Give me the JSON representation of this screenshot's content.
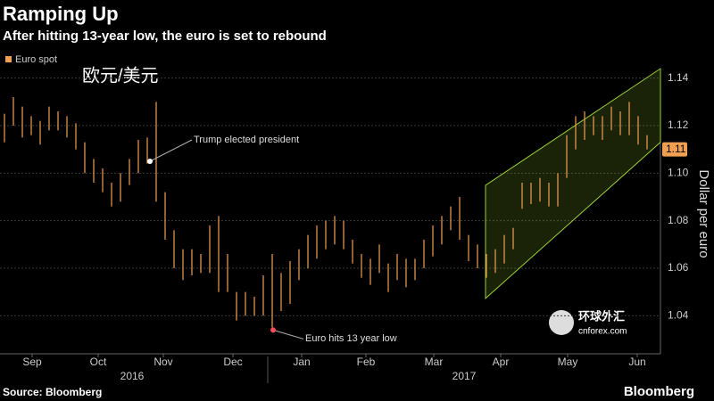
{
  "chart_data": {
    "type": "range-bar",
    "title": "Ramping Up",
    "subtitle": "After hitting 13-year low, the euro is set to rebound",
    "legend": "Euro spot",
    "overlay_text": "欧元/美元",
    "color": "#f0a050",
    "low": [
      1.113,
      1.12,
      1.115,
      1.116,
      1.112,
      1.118,
      1.118,
      1.115,
      1.11,
      1.1,
      1.096,
      1.092,
      1.086,
      1.088,
      1.095,
      1.1,
      1.104,
      1.088,
      1.072,
      1.06,
      1.055,
      1.057,
      1.058,
      1.058,
      1.05,
      1.05,
      1.038,
      1.04,
      1.04,
      1.04,
      1.035,
      1.042,
      1.045,
      1.055,
      1.06,
      1.064,
      1.068,
      1.07,
      1.068,
      1.062,
      1.056,
      1.053,
      1.058,
      1.05,
      1.055,
      1.052,
      1.055,
      1.06,
      1.065,
      1.07,
      1.076,
      1.072,
      1.063,
      1.06,
      1.056,
      1.058,
      1.062,
      1.068,
      1.085,
      1.087,
      1.088,
      1.086,
      1.086,
      1.098,
      1.11,
      1.114,
      1.116,
      1.114,
      1.118,
      1.116,
      1.116,
      1.112,
      1.11
    ],
    "high": [
      1.125,
      1.132,
      1.128,
      1.124,
      1.122,
      1.128,
      1.126,
      1.124,
      1.121,
      1.113,
      1.106,
      1.102,
      1.096,
      1.1,
      1.106,
      1.114,
      1.115,
      1.13,
      1.092,
      1.076,
      1.068,
      1.068,
      1.066,
      1.078,
      1.082,
      1.066,
      1.05,
      1.05,
      1.048,
      1.057,
      1.066,
      1.058,
      1.063,
      1.068,
      1.074,
      1.078,
      1.08,
      1.082,
      1.08,
      1.072,
      1.066,
      1.064,
      1.07,
      1.062,
      1.066,
      1.064,
      1.064,
      1.072,
      1.078,
      1.082,
      1.086,
      1.09,
      1.074,
      1.07,
      1.066,
      1.068,
      1.074,
      1.077,
      1.096,
      1.096,
      1.098,
      1.096,
      1.1,
      1.116,
      1.124,
      1.126,
      1.124,
      1.124,
      1.128,
      1.126,
      1.13,
      1.124,
      1.116
    ],
    "xlim": [
      -0.5,
      73.5
    ],
    "xticks": [
      {
        "value": 3.1,
        "label": "Sep"
      },
      {
        "value": 10.5,
        "label": "Oct"
      },
      {
        "value": 17.8,
        "label": "Nov"
      },
      {
        "value": 25.6,
        "label": "Dec"
      },
      {
        "value": 33.3,
        "label": "Jan"
      },
      {
        "value": 40.5,
        "label": "Feb"
      },
      {
        "value": 48.1,
        "label": "Mar"
      },
      {
        "value": 55.6,
        "label": "Apr"
      },
      {
        "value": 63.1,
        "label": "May"
      },
      {
        "value": 70.9,
        "label": "Jun"
      }
    ],
    "years": [
      "2016",
      "2017"
    ],
    "ylim": [
      1.024,
      1.144
    ],
    "yticks": [
      1.04,
      1.06,
      1.08,
      {
        "value": 1.1,
        "label": "1.10"
      },
      1.12,
      1.14
    ],
    "y_label": "Dollar per euro",
    "last_value": 1.11,
    "grid": true,
    "channel": {
      "x": [
        53.9,
        73.5
      ],
      "upper": [
        1.0949,
        1.144
      ],
      "lower": [
        1.0473,
        1.113
      ]
    },
    "annotations": [
      {
        "text": "Trump elected president",
        "x": 16.3,
        "y": 1.105,
        "color": "#ffffff"
      },
      {
        "text": "Euro hits 13 year low",
        "x": 30.1,
        "y": 1.034,
        "color": "#ff4a5a"
      }
    ],
    "source": "Source: Bloomberg",
    "brand": "Bloomberg",
    "watermark": [
      "环球外汇",
      "cnforex.com"
    ]
  }
}
